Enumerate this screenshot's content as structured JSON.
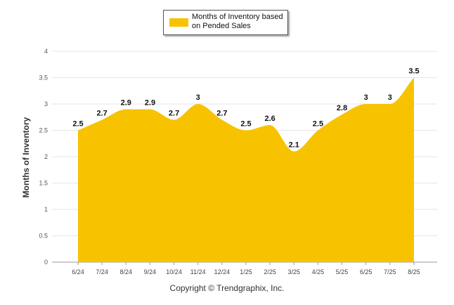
{
  "chart_data": {
    "type": "area",
    "categories": [
      "6/24",
      "7/24",
      "8/24",
      "9/24",
      "10/24",
      "11/24",
      "12/24",
      "1/25",
      "2/25",
      "3/25",
      "4/25",
      "5/25",
      "6/25",
      "7/25",
      "8/25"
    ],
    "series": [
      {
        "name": "Months of Inventory based on Pended Sales",
        "values": [
          2.5,
          2.7,
          2.9,
          2.9,
          2.7,
          3,
          2.7,
          2.5,
          2.6,
          2.1,
          2.5,
          2.8,
          3,
          3,
          3.5
        ],
        "color": "#F7C300"
      }
    ],
    "ylabel": "Months of Inventory",
    "xlabel": "",
    "ylim": [
      0,
      4
    ],
    "yticks": [
      "0",
      "0.5",
      "1",
      "1.5",
      "2",
      "2.5",
      "3",
      "3.5",
      "4"
    ],
    "grid": true,
    "legend": "top-center"
  },
  "footer": {
    "copyright": "Copyright © Trendgraphix, Inc."
  }
}
